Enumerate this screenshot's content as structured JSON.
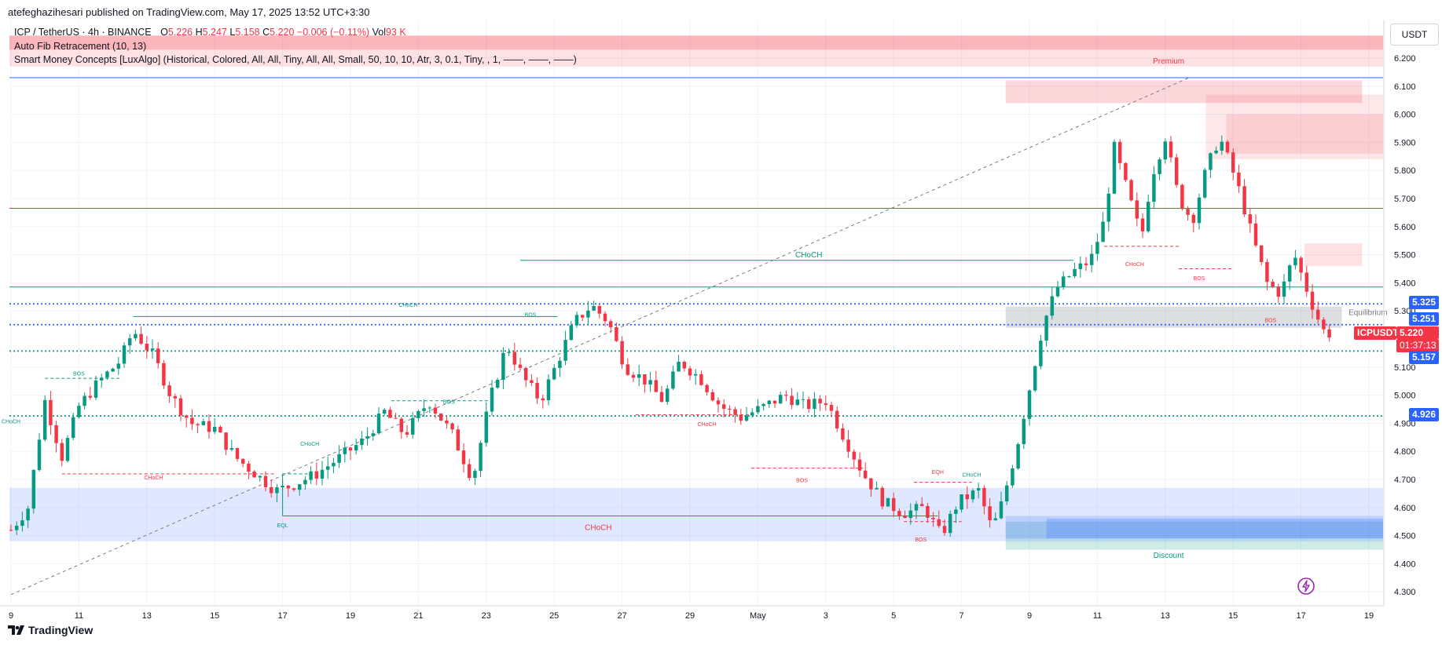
{
  "header": {
    "published": "atefeghazihesari published on TradingView.com, May 17, 2025 13:52 UTC+3:30",
    "symbol_line": "ICP / TetherUS · 4h · BINANCE",
    "o_label": "O",
    "o": "5.226",
    "h_label": "H",
    "h": "5.247",
    "l_label": "L",
    "l": "5.158",
    "c_label": "C",
    "c": "5.220",
    "change": "−0.006 (−0.11%)",
    "vol_label": "Vol",
    "vol": "93 K",
    "indicator1": "Auto Fib Retracement (10, 13)",
    "indicator2": "Smart Money Concepts [LuxAlgo] (Historical, Colored, All, All, Tiny, All, All, Small, 50, 10, 10, Atr, 3, 0.1, Tiny, , 1, ——, ——, ——)"
  },
  "currency": "USDT",
  "footer_brand": "TradingView",
  "price_badges": {
    "p1": "5.325",
    "p2": "5.251",
    "current": "5.220",
    "ticker": "ICPUSDT",
    "countdown": "01:37:13",
    "p3": "5.157",
    "p4": "4.926"
  },
  "colors": {
    "up": "#089981",
    "down": "#f23645",
    "blue_badge": "#2962ff",
    "teal_badge": "#22ab94"
  },
  "chart_data": {
    "type": "candlestick",
    "title": "ICP / TetherUS · 4h · BINANCE",
    "ylim": [
      4.25,
      6.28
    ],
    "y_ticks": [
      "6.200",
      "6.100",
      "6.000",
      "5.900",
      "5.800",
      "5.700",
      "5.600",
      "5.500",
      "5.400",
      "5.300",
      "5.100",
      "5.000",
      "4.900",
      "4.800",
      "4.700",
      "4.600",
      "4.500",
      "4.400",
      "4.300"
    ],
    "x_ticks": [
      {
        "label": "9",
        "day": 0
      },
      {
        "label": "11",
        "day": 2
      },
      {
        "label": "13",
        "day": 4
      },
      {
        "label": "15",
        "day": 6
      },
      {
        "label": "17",
        "day": 8
      },
      {
        "label": "19",
        "day": 10
      },
      {
        "label": "21",
        "day": 12
      },
      {
        "label": "23",
        "day": 14
      },
      {
        "label": "25",
        "day": 16
      },
      {
        "label": "27",
        "day": 18
      },
      {
        "label": "29",
        "day": 20
      },
      {
        "label": "May",
        "day": 22
      },
      {
        "label": "3",
        "day": 24
      },
      {
        "label": "5",
        "day": 26
      },
      {
        "label": "7",
        "day": 28
      },
      {
        "label": "9",
        "day": 30
      },
      {
        "label": "11",
        "day": 32
      },
      {
        "label": "13",
        "day": 34
      },
      {
        "label": "15",
        "day": 36
      },
      {
        "label": "17",
        "day": 38
      },
      {
        "label": "19",
        "day": 40
      }
    ],
    "close_path": [
      [
        0,
        4.52
      ],
      [
        0.5,
        4.6
      ],
      [
        1,
        4.98
      ],
      [
        1.5,
        4.78
      ],
      [
        2,
        4.96
      ],
      [
        2.6,
        5.05
      ],
      [
        3.2,
        5.12
      ],
      [
        3.6,
        5.23
      ],
      [
        4.2,
        5.14
      ],
      [
        4.7,
        5.0
      ],
      [
        5.3,
        4.9
      ],
      [
        6,
        4.88
      ],
      [
        6.6,
        4.78
      ],
      [
        7.2,
        4.72
      ],
      [
        7.8,
        4.66
      ],
      [
        8.3,
        4.68
      ],
      [
        9,
        4.72
      ],
      [
        9.7,
        4.78
      ],
      [
        10.4,
        4.84
      ],
      [
        11,
        4.94
      ],
      [
        11.6,
        4.86
      ],
      [
        12.3,
        4.98
      ],
      [
        13,
        4.86
      ],
      [
        13.6,
        4.7
      ],
      [
        14.1,
        4.98
      ],
      [
        14.6,
        5.18
      ],
      [
        15.1,
        5.06
      ],
      [
        15.6,
        4.98
      ],
      [
        16.1,
        5.12
      ],
      [
        16.6,
        5.26
      ],
      [
        17.1,
        5.32
      ],
      [
        17.6,
        5.26
      ],
      [
        18.1,
        5.1
      ],
      [
        18.7,
        5.05
      ],
      [
        19.2,
        4.98
      ],
      [
        19.7,
        5.12
      ],
      [
        20.3,
        5.06
      ],
      [
        20.9,
        4.96
      ],
      [
        21.5,
        4.92
      ],
      [
        22.2,
        4.96
      ],
      [
        22.8,
        5.0
      ],
      [
        23.4,
        4.96
      ],
      [
        24,
        4.98
      ],
      [
        24.5,
        4.86
      ],
      [
        25.1,
        4.72
      ],
      [
        25.7,
        4.62
      ],
      [
        26.3,
        4.58
      ],
      [
        26.9,
        4.6
      ],
      [
        27.4,
        4.5
      ],
      [
        27.9,
        4.62
      ],
      [
        28.5,
        4.66
      ],
      [
        28.9,
        4.52
      ],
      [
        29.2,
        4.62
      ],
      [
        29.6,
        4.8
      ],
      [
        30.1,
        5.08
      ],
      [
        30.4,
        5.25
      ],
      [
        30.8,
        5.38
      ],
      [
        31.3,
        5.44
      ],
      [
        31.8,
        5.48
      ],
      [
        32.2,
        5.62
      ],
      [
        32.5,
        5.88
      ],
      [
        32.9,
        5.72
      ],
      [
        33.3,
        5.56
      ],
      [
        33.6,
        5.78
      ],
      [
        34,
        5.92
      ],
      [
        34.4,
        5.7
      ],
      [
        34.8,
        5.62
      ],
      [
        35.2,
        5.8
      ],
      [
        35.6,
        5.92
      ],
      [
        36.1,
        5.76
      ],
      [
        36.6,
        5.55
      ],
      [
        37,
        5.4
      ],
      [
        37.4,
        5.36
      ],
      [
        37.8,
        5.5
      ],
      [
        38.1,
        5.4
      ],
      [
        38.4,
        5.3
      ],
      [
        38.7,
        5.22
      ],
      [
        38.9,
        5.22
      ]
    ],
    "horizontal_levels": [
      {
        "price": 6.13,
        "color": "#2962ff"
      },
      {
        "price": 5.665,
        "color": "#f23645"
      },
      {
        "price": 5.385,
        "color": "#089981"
      },
      {
        "price": 5.325,
        "color": "#2962ff",
        "dotted": true
      },
      {
        "price": 5.251,
        "color": "#2962ff",
        "dotted": true
      },
      {
        "price": 5.157,
        "color": "#089981",
        "dotted": true
      },
      {
        "price": 4.926,
        "color": "#089981",
        "dotted": true
      }
    ],
    "zones": [
      {
        "label": "Premium",
        "from": 6.17,
        "to": 6.28,
        "color": "#f23645"
      },
      {
        "label": "Equilibrium",
        "from": 5.24,
        "to": 5.315,
        "color": "#787b86"
      },
      {
        "label": "Discount",
        "from": 4.45,
        "to": 4.55,
        "color": "#089981"
      }
    ],
    "annotations": [
      {
        "text": "CHoCH",
        "day": 23.5,
        "price": 5.49,
        "color": "#089981"
      },
      {
        "text": "CHoCH",
        "day": 11.7,
        "price": 5.315,
        "color": "#089981"
      },
      {
        "text": "CHoCH",
        "day": 20.5,
        "price": 4.89,
        "color": "#f23645"
      },
      {
        "text": "CHoCH",
        "day": 4.2,
        "price": 4.7,
        "color": "#f23645"
      },
      {
        "text": "CHoCH",
        "day": 17.3,
        "price": 4.52,
        "color": "#f23645"
      },
      {
        "text": "CHoCH",
        "day": 8.8,
        "price": 4.82,
        "color": "#089981"
      },
      {
        "text": "CHoCH",
        "day": 28.3,
        "price": 4.71,
        "color": "#089981"
      },
      {
        "text": "CHoCH",
        "day": 33.1,
        "price": 5.46,
        "color": "#f23645"
      },
      {
        "text": "BOS",
        "day": 2,
        "price": 5.07,
        "color": "#089981"
      },
      {
        "text": "BOS",
        "day": 12.9,
        "price": 4.97,
        "color": "#089981"
      },
      {
        "text": "BOS",
        "day": 15.3,
        "price": 5.28,
        "color": "#089981"
      },
      {
        "text": "BOS",
        "day": 23.3,
        "price": 4.69,
        "color": "#f23645"
      },
      {
        "text": "BOS",
        "day": 26.8,
        "price": 4.48,
        "color": "#f23645"
      },
      {
        "text": "BOS",
        "day": 35,
        "price": 5.41,
        "color": "#f23645"
      },
      {
        "text": "BOS",
        "day": 37.1,
        "price": 5.26,
        "color": "#f23645"
      },
      {
        "text": "EQH",
        "day": 27.3,
        "price": 4.72,
        "color": "#f23645"
      },
      {
        "text": "EQL",
        "day": 8,
        "price": 4.53,
        "color": "#089981"
      },
      {
        "text": "CHoCH",
        "day": 0,
        "price": 4.9,
        "color": "#089981"
      }
    ]
  }
}
